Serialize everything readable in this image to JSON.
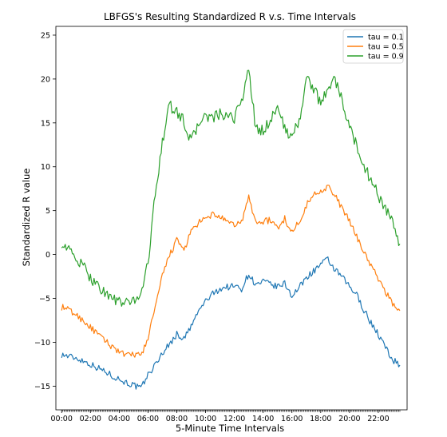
{
  "chart_data": {
    "type": "line",
    "title": "LBFGS's Resulting Standardized R v.s. Time Intervals",
    "xlabel": "5-Minute Time Intervals",
    "ylabel": "Standardized R value",
    "xlim": [
      -0.4,
      24.0
    ],
    "ylim": [
      -17.7,
      26.0
    ],
    "xticks": [
      {
        "label": "00:00",
        "value": 0
      },
      {
        "label": "02:00",
        "value": 2
      },
      {
        "label": "04:00",
        "value": 4
      },
      {
        "label": "06:00",
        "value": 6
      },
      {
        "label": "08:00",
        "value": 8
      },
      {
        "label": "10:00",
        "value": 10
      },
      {
        "label": "12:00",
        "value": 12
      },
      {
        "label": "14:00",
        "value": 14
      },
      {
        "label": "16:00",
        "value": 16
      },
      {
        "label": "18:00",
        "value": 18
      },
      {
        "label": "20:00",
        "value": 20
      },
      {
        "label": "22:00",
        "value": 22
      }
    ],
    "yticks": [
      -15,
      -10,
      -5,
      0,
      5,
      10,
      15,
      20,
      25
    ],
    "legend": "top-right",
    "series": [
      {
        "name": "tau = 0.1",
        "color": "#1f77b4",
        "x": [
          0,
          0.5,
          1,
          1.5,
          2,
          2.5,
          3,
          3.5,
          4,
          4.5,
          5,
          5.5,
          6,
          6.5,
          7,
          7.5,
          8,
          8.5,
          9,
          9.5,
          10,
          10.5,
          11,
          11.5,
          12,
          12.5,
          13,
          13.5,
          14,
          14.5,
          15,
          15.5,
          16,
          16.5,
          17,
          17.5,
          18,
          18.5,
          19,
          19.5,
          20,
          20.5,
          21,
          21.5,
          22,
          22.5,
          23,
          23.5
        ],
        "y": [
          -11.4,
          -11.6,
          -11.8,
          -12.1,
          -12.5,
          -12.9,
          -13.3,
          -13.8,
          -14.2,
          -14.6,
          -14.9,
          -15.3,
          -13.7,
          -12.6,
          -11.2,
          -10.2,
          -9.1,
          -9.6,
          -8.2,
          -6.5,
          -5.3,
          -4.5,
          -3.9,
          -3.7,
          -3.6,
          -3.9,
          -2.2,
          -3.5,
          -3.1,
          -3.4,
          -3.7,
          -3.3,
          -4.7,
          -3.8,
          -2.6,
          -1.9,
          -1.1,
          -0.6,
          -1.8,
          -2.6,
          -3.7,
          -4.6,
          -6.3,
          -7.8,
          -9.1,
          -10.6,
          -12.0,
          -12.6
        ]
      },
      {
        "name": "tau = 0.5",
        "color": "#ff7f0e",
        "x": [
          0,
          0.5,
          1,
          1.5,
          2,
          2.5,
          3,
          3.5,
          4,
          4.5,
          5,
          5.5,
          6,
          6.5,
          7,
          7.5,
          8,
          8.5,
          9,
          9.5,
          10,
          10.5,
          11,
          11.5,
          12,
          12.5,
          13,
          13.5,
          14,
          14.5,
          15,
          15.5,
          16,
          16.5,
          17,
          17.5,
          18,
          18.5,
          19,
          19.5,
          20,
          20.5,
          21,
          21.5,
          22,
          22.5,
          23,
          23.5
        ],
        "y": [
          -6.0,
          -6.3,
          -6.9,
          -7.5,
          -8.3,
          -9.1,
          -9.8,
          -10.5,
          -11.0,
          -11.6,
          -11.3,
          -11.6,
          -9.5,
          -6.0,
          -2.5,
          0.0,
          1.6,
          0.5,
          2.6,
          3.6,
          4.0,
          4.6,
          4.3,
          3.6,
          3.4,
          3.7,
          6.5,
          3.6,
          3.8,
          3.9,
          3.0,
          4.1,
          2.5,
          3.8,
          5.6,
          6.8,
          7.3,
          7.8,
          6.6,
          5.3,
          3.7,
          2.1,
          0.3,
          -1.3,
          -2.8,
          -4.2,
          -5.6,
          -6.4
        ]
      },
      {
        "name": "tau = 0.9",
        "color": "#2ca02c",
        "x": [
          0,
          0.5,
          1,
          1.5,
          2,
          2.5,
          3,
          3.5,
          4,
          4.5,
          5,
          5.5,
          6,
          6.5,
          7,
          7.5,
          8,
          8.5,
          9,
          9.5,
          10,
          10.5,
          11,
          11.5,
          12,
          12.5,
          13,
          13.5,
          14,
          14.5,
          15,
          15.5,
          16,
          16.5,
          17,
          17.5,
          18,
          18.5,
          19,
          19.5,
          20,
          20.5,
          21,
          21.5,
          22,
          22.5,
          23,
          23.5
        ],
        "y": [
          1.4,
          0.5,
          -0.5,
          -1.4,
          -2.6,
          -3.5,
          -4.3,
          -5.0,
          -5.4,
          -5.6,
          -5.2,
          -4.5,
          -1.0,
          6.8,
          13.0,
          17.0,
          16.2,
          15.2,
          12.8,
          14.9,
          15.8,
          15.5,
          16.0,
          15.5,
          15.6,
          17.6,
          21.0,
          14.2,
          14.1,
          15.3,
          17.0,
          14.2,
          13.5,
          15.2,
          20.0,
          19.0,
          17.1,
          19.1,
          20.0,
          17.4,
          14.5,
          12.4,
          10.1,
          8.5,
          6.8,
          5.2,
          3.5,
          1.2
        ]
      }
    ]
  }
}
